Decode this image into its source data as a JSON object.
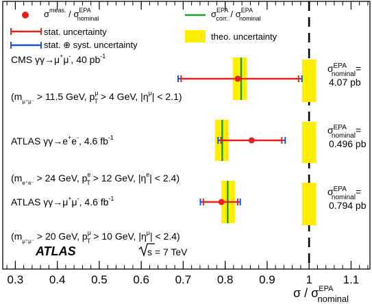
{
  "chart_data": {
    "type": "scatter",
    "xlim": [
      0.27,
      1.145
    ],
    "x_ticks": [
      "0.3",
      "0.4",
      "0.5",
      "0.6",
      "0.7",
      "0.8",
      "0.9",
      "1",
      "1.1"
    ],
    "xlabel": "σ / σ",
    "xlabel_sup": "EPA",
    "xlabel_sub": "nominal",
    "reference_line_x": 1.0,
    "theo_band_width": 0.034,
    "legend": {
      "meas": {
        "pre": "σ",
        "pre_sup": "meas.",
        "mid": " / σ",
        "mid_sup": "EPA",
        "mid_sub": "nominal"
      },
      "corr": {
        "pre": "σ",
        "pre_sup": "EPA",
        "pre_sub": "corr.",
        "mid": " / σ",
        "mid_sup": "EPA",
        "mid_sub": "nominal"
      },
      "stat": "stat. uncertainty",
      "syst": "stat. ⊕ syst. uncertainty",
      "theo": "theo. uncertainty"
    },
    "measurements": [
      {
        "label_a": "CMS γγ→μ",
        "label_a_sup1": "+",
        "label_a_b": "μ",
        "label_a_sup2": "-",
        "label_a_c": ", 40 pb",
        "label_a_sup3": "-1",
        "cuts": "(m",
        "cuts_sub": "μ⁺μ⁻",
        "cuts_b": " > 11.5 GeV, p",
        "cuts_sub2": "T",
        "cuts_sup2": "μ",
        "cuts_c": " > 4 GeV, |η",
        "cuts_sup3": "μ",
        "cuts_d": "| < 2.1)",
        "value": 0.83,
        "stat": [
          0.695,
          0.975
        ],
        "syst": [
          0.688,
          0.983
        ],
        "epa_corr": 0.838,
        "theo_band": [
          0.818,
          0.852
        ],
        "nominal_prefix": "σ",
        "nominal_sup": "EPA",
        "nominal_sub": "nominal",
        "nominal_eq": "=",
        "nominal_value": "4.07 pb"
      },
      {
        "label_a": "ATLAS γγ→e",
        "label_a_sup1": "+",
        "label_a_b": "e",
        "label_a_sup2": "-",
        "label_a_c": ", 4.6 fb",
        "label_a_sup3": "-1",
        "cuts": "(m",
        "cuts_sub": "e⁺e⁻",
        "cuts_b": " > 24 GeV, p",
        "cuts_sub2": "T",
        "cuts_sup2": "e",
        "cuts_c": " > 12 GeV, |η",
        "cuts_sup3": "e",
        "cuts_d": "| < 2.4)",
        "value": 0.863,
        "stat": [
          0.79,
          0.935
        ],
        "syst": [
          0.783,
          0.943
        ],
        "epa_corr": 0.793,
        "theo_band": [
          0.776,
          0.808
        ],
        "nominal_prefix": "σ",
        "nominal_sup": "EPA",
        "nominal_sub": "nominal",
        "nominal_eq": "=",
        "nominal_value": "0.496 pb"
      },
      {
        "label_a": "ATLAS γγ→μ",
        "label_a_sup1": "+",
        "label_a_b": "μ",
        "label_a_sup2": "-",
        "label_a_c": ", 4.6 fb",
        "label_a_sup3": "-1",
        "cuts": "(m",
        "cuts_sub": "μ⁺μ⁻",
        "cuts_b": " > 20 GeV, p",
        "cuts_sub2": "T",
        "cuts_sup2": "μ",
        "cuts_c": " > 10 GeV, |η",
        "cuts_sup3": "μ",
        "cuts_d": "| < 2.4)",
        "value": 0.791,
        "stat": [
          0.748,
          0.83
        ],
        "syst": [
          0.741,
          0.836
        ],
        "epa_corr": 0.806,
        "theo_band": [
          0.791,
          0.823
        ],
        "nominal_prefix": "σ",
        "nominal_sup": "EPA",
        "nominal_sub": "nominal",
        "nominal_eq": "=",
        "nominal_value": "0.794 pb"
      }
    ],
    "experiment_label": "ATLAS",
    "energy_label": "s = 7 TeV",
    "colors": {
      "meas": "#e8211c",
      "stat": "#e8211c",
      "syst": "#1f4fe0",
      "corr": "#1a9a2a",
      "theo": "#ffee00",
      "axis": "#000000"
    }
  }
}
